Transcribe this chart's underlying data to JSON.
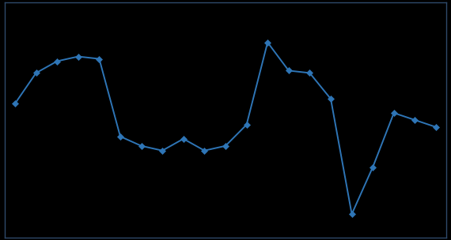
{
  "x": [
    1,
    2,
    3,
    4,
    5,
    6,
    7,
    8,
    9,
    10,
    11,
    12,
    13,
    14,
    15,
    16,
    17,
    18,
    19,
    20,
    21
  ],
  "y": [
    42,
    55,
    60,
    62,
    61,
    28,
    24,
    22,
    27,
    22,
    24,
    33,
    68,
    56,
    55,
    44,
    -5,
    15,
    38,
    35,
    32
  ],
  "line_color": "#2E75B6",
  "marker_color": "#2E75B6",
  "background_color": "#000000",
  "spine_color": "#2E4A6B",
  "ylim": [
    -15,
    85
  ],
  "xlim": [
    0.5,
    21.5
  ]
}
